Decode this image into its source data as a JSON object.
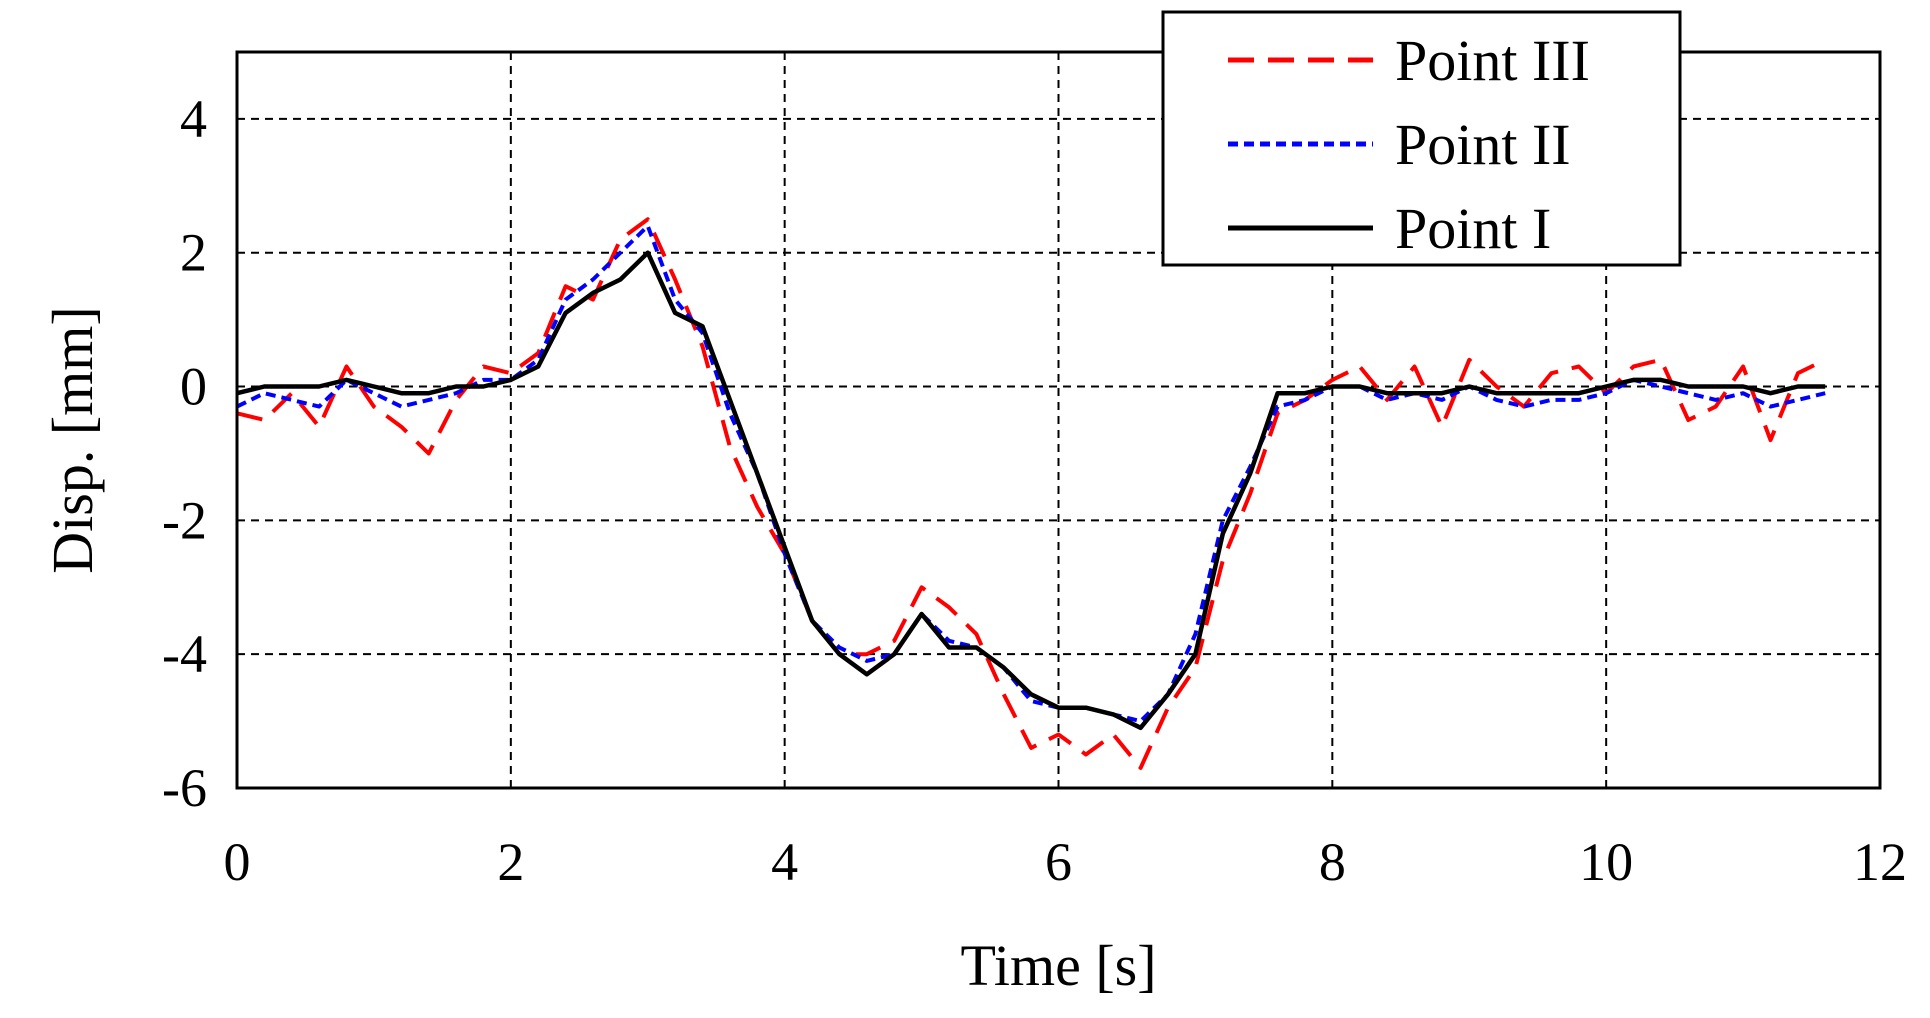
{
  "chart_data": {
    "type": "line",
    "title": "",
    "xlabel": "Time  [s]",
    "ylabel": "Disp.  [mm]",
    "xlim": [
      0,
      12
    ],
    "ylim": [
      -6,
      5
    ],
    "xticks": [
      "0",
      "2",
      "4",
      "6",
      "8",
      "10",
      "12"
    ],
    "yticks": [
      "4",
      "2",
      "0",
      "-2",
      "-4",
      "-6"
    ],
    "grid": true,
    "legend_position": "top-right",
    "series": [
      {
        "name": "Point III",
        "color": "#ff0000",
        "style": "dashed",
        "x": [
          0.0,
          0.2,
          0.4,
          0.6,
          0.8,
          1.0,
          1.2,
          1.4,
          1.6,
          1.8,
          2.0,
          2.2,
          2.4,
          2.6,
          2.8,
          3.0,
          3.2,
          3.4,
          3.6,
          3.8,
          4.0,
          4.2,
          4.4,
          4.6,
          4.8,
          5.0,
          5.2,
          5.4,
          5.6,
          5.8,
          6.0,
          6.2,
          6.4,
          6.6,
          6.8,
          7.0,
          7.2,
          7.4,
          7.6,
          7.8,
          8.0,
          8.2,
          8.4,
          8.6,
          8.8,
          9.0,
          9.2,
          9.4,
          9.6,
          9.8,
          10.0,
          10.2,
          10.4,
          10.6,
          10.8,
          11.0,
          11.2,
          11.4,
          11.6
        ],
        "y": [
          -0.4,
          -0.5,
          -0.1,
          -0.6,
          0.3,
          -0.3,
          -0.6,
          -1.0,
          -0.2,
          0.3,
          0.2,
          0.5,
          1.5,
          1.3,
          2.2,
          2.5,
          1.6,
          0.6,
          -0.9,
          -1.8,
          -2.5,
          -3.5,
          -4.0,
          -4.0,
          -3.8,
          -3.0,
          -3.3,
          -3.7,
          -4.6,
          -5.4,
          -5.2,
          -5.5,
          -5.2,
          -5.7,
          -4.8,
          -4.2,
          -2.6,
          -1.6,
          -0.4,
          -0.2,
          0.1,
          0.3,
          -0.2,
          0.3,
          -0.6,
          0.4,
          0.0,
          -0.3,
          0.2,
          0.3,
          -0.1,
          0.3,
          0.4,
          -0.5,
          -0.3,
          0.3,
          -0.8,
          0.2,
          0.4
        ]
      },
      {
        "name": "Point II",
        "color": "#0000ff",
        "style": "dotted",
        "x": [
          0.0,
          0.2,
          0.4,
          0.6,
          0.8,
          1.0,
          1.2,
          1.4,
          1.6,
          1.8,
          2.0,
          2.2,
          2.4,
          2.6,
          2.8,
          3.0,
          3.2,
          3.4,
          3.6,
          3.8,
          4.0,
          4.2,
          4.4,
          4.6,
          4.8,
          5.0,
          5.2,
          5.4,
          5.6,
          5.8,
          6.0,
          6.2,
          6.4,
          6.6,
          6.8,
          7.0,
          7.2,
          7.4,
          7.6,
          7.8,
          8.0,
          8.2,
          8.4,
          8.6,
          8.8,
          9.0,
          9.2,
          9.4,
          9.6,
          9.8,
          10.0,
          10.2,
          10.4,
          10.6,
          10.8,
          11.0,
          11.2,
          11.4,
          11.6
        ],
        "y": [
          -0.3,
          -0.1,
          -0.2,
          -0.3,
          0.1,
          -0.1,
          -0.3,
          -0.2,
          -0.1,
          0.1,
          0.1,
          0.4,
          1.3,
          1.6,
          2.0,
          2.4,
          1.3,
          0.8,
          -0.4,
          -1.3,
          -2.5,
          -3.5,
          -3.9,
          -4.1,
          -4.0,
          -3.4,
          -3.8,
          -3.9,
          -4.2,
          -4.7,
          -4.8,
          -4.8,
          -4.9,
          -5.0,
          -4.6,
          -3.7,
          -2.0,
          -1.2,
          -0.3,
          -0.2,
          0.0,
          0.0,
          -0.2,
          -0.1,
          -0.2,
          0.0,
          -0.2,
          -0.3,
          -0.2,
          -0.2,
          -0.1,
          0.1,
          0.0,
          -0.1,
          -0.2,
          -0.1,
          -0.3,
          -0.2,
          -0.1
        ]
      },
      {
        "name": "Point I",
        "color": "#000000",
        "style": "solid",
        "x": [
          0.0,
          0.2,
          0.4,
          0.6,
          0.8,
          1.0,
          1.2,
          1.4,
          1.6,
          1.8,
          2.0,
          2.2,
          2.4,
          2.6,
          2.8,
          3.0,
          3.2,
          3.4,
          3.6,
          3.8,
          4.0,
          4.2,
          4.4,
          4.6,
          4.8,
          5.0,
          5.2,
          5.4,
          5.6,
          5.8,
          6.0,
          6.2,
          6.4,
          6.6,
          6.8,
          7.0,
          7.2,
          7.4,
          7.6,
          7.8,
          8.0,
          8.2,
          8.4,
          8.6,
          8.8,
          9.0,
          9.2,
          9.4,
          9.6,
          9.8,
          10.0,
          10.2,
          10.4,
          10.6,
          10.8,
          11.0,
          11.2,
          11.4,
          11.6
        ],
        "y": [
          -0.1,
          0.0,
          0.0,
          0.0,
          0.1,
          0.0,
          -0.1,
          -0.1,
          0.0,
          0.0,
          0.1,
          0.3,
          1.1,
          1.4,
          1.6,
          2.0,
          1.1,
          0.9,
          -0.2,
          -1.3,
          -2.4,
          -3.5,
          -4.0,
          -4.3,
          -4.0,
          -3.4,
          -3.9,
          -3.9,
          -4.2,
          -4.6,
          -4.8,
          -4.8,
          -4.9,
          -5.1,
          -4.6,
          -4.0,
          -2.2,
          -1.3,
          -0.1,
          -0.1,
          0.0,
          0.0,
          -0.1,
          -0.1,
          -0.1,
          0.0,
          -0.1,
          -0.1,
          -0.1,
          -0.1,
          0.0,
          0.1,
          0.1,
          0.0,
          0.0,
          0.0,
          -0.1,
          0.0,
          0.0
        ]
      }
    ]
  }
}
